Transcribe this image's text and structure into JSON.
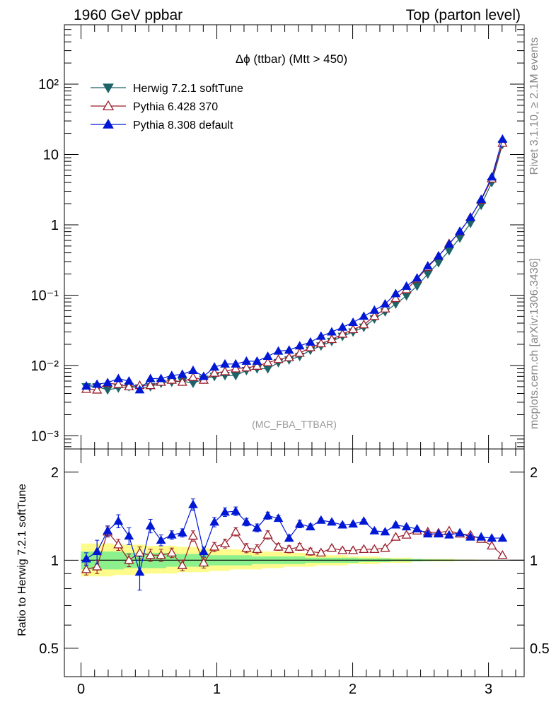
{
  "header": {
    "left": "1960 GeV ppbar",
    "right": "Top (parton level)"
  },
  "side_labels": {
    "rivet": "Rivet 3.1.10, ≥ 2.1M events",
    "mcplots": "mcplots.cern.ch [arXiv:1306.3436]"
  },
  "watermark": "(MC_FBA_TTBAR)",
  "colors": {
    "herwig": "#1d6468",
    "pythia6": "#9b1c2a",
    "pythia8": "#0018d6",
    "band_inner": "#8cf08c",
    "band_outer": "#fdfb8c"
  },
  "chart_data": [
    {
      "type": "line",
      "title": "Δϕ (ttbar) (Mtt > 450)",
      "xlabel": "",
      "ylabel": "",
      "yscale": "log",
      "ylim": [
        0.00065,
        700
      ],
      "xlim": [
        -0.06,
        3.2
      ],
      "yticks": [
        {
          "value": 0.001,
          "label": "10⁻³"
        },
        {
          "value": 0.01,
          "label": "10⁻²"
        },
        {
          "value": 0.1,
          "label": "10⁻¹"
        },
        {
          "value": 1,
          "label": "1"
        },
        {
          "value": 10,
          "label": "10"
        },
        {
          "value": 100,
          "label": "10²"
        }
      ],
      "legend": "top-left",
      "x": [
        0.039,
        0.118,
        0.196,
        0.275,
        0.353,
        0.432,
        0.511,
        0.589,
        0.668,
        0.746,
        0.825,
        0.903,
        0.982,
        1.06,
        1.139,
        1.218,
        1.296,
        1.375,
        1.453,
        1.532,
        1.61,
        1.689,
        1.767,
        1.846,
        1.925,
        2.003,
        2.082,
        2.16,
        2.239,
        2.317,
        2.396,
        2.474,
        2.553,
        2.632,
        2.71,
        2.789,
        2.867,
        2.946,
        3.024,
        3.103
      ],
      "series": [
        {
          "name": "Herwig 7.2.1 softTune",
          "color": "#1d6468",
          "marker": "triangle-down-filled",
          "values": [
            0.005,
            0.005,
            0.0045,
            0.0048,
            0.005,
            0.0048,
            0.005,
            0.0056,
            0.0058,
            0.006,
            0.0056,
            0.0064,
            0.007,
            0.0072,
            0.0072,
            0.0085,
            0.009,
            0.009,
            0.011,
            0.012,
            0.0135,
            0.0165,
            0.019,
            0.022,
            0.026,
            0.03,
            0.035,
            0.046,
            0.058,
            0.075,
            0.098,
            0.135,
            0.2,
            0.29,
            0.43,
            0.65,
            1.05,
            1.9,
            4.0,
            14.0
          ]
        },
        {
          "name": "Pythia 6.428 370",
          "color": "#9b1c2a",
          "marker": "triangle-up-open",
          "values": [
            0.0046,
            0.0045,
            0.0056,
            0.0054,
            0.005,
            0.0052,
            0.0052,
            0.0058,
            0.0062,
            0.0058,
            0.0068,
            0.0062,
            0.0078,
            0.0082,
            0.009,
            0.0093,
            0.0098,
            0.011,
            0.0122,
            0.013,
            0.015,
            0.018,
            0.0205,
            0.0235,
            0.028,
            0.0325,
            0.038,
            0.05,
            0.064,
            0.09,
            0.12,
            0.17,
            0.25,
            0.36,
            0.54,
            0.8,
            1.28,
            2.25,
            4.5,
            14.5
          ]
        },
        {
          "name": "Pythia 8.308 default",
          "color": "#0018d6",
          "marker": "triangle-up-filled",
          "values": [
            0.0051,
            0.0054,
            0.0057,
            0.0065,
            0.006,
            0.0045,
            0.0065,
            0.0065,
            0.0072,
            0.0075,
            0.0085,
            0.007,
            0.0095,
            0.0105,
            0.0105,
            0.0115,
            0.0115,
            0.0135,
            0.016,
            0.0165,
            0.019,
            0.0215,
            0.026,
            0.03,
            0.035,
            0.041,
            0.05,
            0.061,
            0.075,
            0.105,
            0.134,
            0.175,
            0.26,
            0.36,
            0.53,
            0.81,
            1.27,
            2.3,
            4.8,
            16.5
          ]
        }
      ]
    },
    {
      "type": "line",
      "title": "",
      "xlabel": "",
      "ylabel": "Ratio to Herwig 7.2.1 softTune",
      "yscale": "log",
      "ylim": [
        0.4,
        2.4
      ],
      "xlim": [
        -0.06,
        3.2
      ],
      "yticks": [
        {
          "value": 0.5,
          "label": "0.5"
        },
        {
          "value": 1,
          "label": "1"
        },
        {
          "value": 2,
          "label": "2"
        }
      ],
      "xticks": [
        {
          "value": 0,
          "label": "0"
        },
        {
          "value": 1,
          "label": "1"
        },
        {
          "value": 2,
          "label": "2"
        },
        {
          "value": 3,
          "label": "3"
        }
      ],
      "x": [
        0.039,
        0.118,
        0.196,
        0.275,
        0.353,
        0.432,
        0.511,
        0.589,
        0.668,
        0.746,
        0.825,
        0.903,
        0.982,
        1.06,
        1.139,
        1.218,
        1.296,
        1.375,
        1.453,
        1.532,
        1.61,
        1.689,
        1.767,
        1.846,
        1.925,
        2.003,
        2.082,
        2.16,
        2.239,
        2.317,
        2.396,
        2.474,
        2.553,
        2.632,
        2.71,
        2.789,
        2.867,
        2.946,
        3.024,
        3.103
      ],
      "band_outer": {
        "lo": [
          0.88,
          0.88,
          0.88,
          0.89,
          0.89,
          0.89,
          0.9,
          0.9,
          0.9,
          0.91,
          0.91,
          0.91,
          0.92,
          0.92,
          0.93,
          0.93,
          0.93,
          0.94,
          0.94,
          0.95,
          0.95,
          0.95,
          0.96,
          0.96,
          0.96,
          0.97,
          0.97,
          0.97,
          0.98,
          0.98,
          0.98,
          0.99,
          0.99,
          0.99,
          0.99,
          0.995,
          0.995,
          0.997,
          0.998,
          0.999
        ],
        "hi": [
          1.14,
          1.14,
          1.14,
          1.13,
          1.13,
          1.13,
          1.12,
          1.12,
          1.12,
          1.11,
          1.11,
          1.1,
          1.1,
          1.09,
          1.09,
          1.08,
          1.08,
          1.07,
          1.07,
          1.06,
          1.06,
          1.05,
          1.05,
          1.04,
          1.04,
          1.03,
          1.03,
          1.03,
          1.02,
          1.02,
          1.02,
          1.01,
          1.01,
          1.01,
          1.01,
          1.005,
          1.005,
          1.003,
          1.002,
          1.001
        ]
      },
      "band_inner": {
        "lo": [
          0.93,
          0.93,
          0.93,
          0.93,
          0.94,
          0.94,
          0.94,
          0.94,
          0.95,
          0.95,
          0.95,
          0.95,
          0.96,
          0.96,
          0.96,
          0.96,
          0.97,
          0.97,
          0.97,
          0.97,
          0.97,
          0.98,
          0.98,
          0.98,
          0.98,
          0.98,
          0.985,
          0.985,
          0.985,
          0.99,
          0.99,
          0.99,
          0.993,
          0.994,
          0.995,
          0.996,
          0.997,
          0.998,
          0.999,
          0.999
        ],
        "hi": [
          1.07,
          1.07,
          1.07,
          1.07,
          1.06,
          1.06,
          1.06,
          1.06,
          1.05,
          1.05,
          1.05,
          1.05,
          1.04,
          1.04,
          1.04,
          1.04,
          1.03,
          1.03,
          1.03,
          1.03,
          1.03,
          1.02,
          1.02,
          1.02,
          1.02,
          1.02,
          1.015,
          1.015,
          1.015,
          1.01,
          1.01,
          1.01,
          1.007,
          1.006,
          1.005,
          1.004,
          1.003,
          1.002,
          1.001,
          1.001
        ]
      },
      "series": [
        {
          "name": "Pythia 6.428 370",
          "color": "#9b1c2a",
          "marker": "triangle-up-open",
          "values": [
            0.93,
            0.95,
            1.25,
            1.13,
            1.0,
            1.06,
            1.04,
            1.04,
            1.06,
            0.96,
            1.21,
            0.98,
            1.11,
            1.14,
            1.25,
            1.1,
            1.09,
            1.22,
            1.11,
            1.09,
            1.11,
            1.07,
            1.06,
            1.1,
            1.08,
            1.08,
            1.09,
            1.09,
            1.1,
            1.2,
            1.22,
            1.26,
            1.25,
            1.24,
            1.26,
            1.23,
            1.22,
            1.18,
            1.12,
            1.04
          ],
          "err": [
            0.04,
            0.05,
            0.05,
            0.05,
            0.05,
            0.05,
            0.05,
            0.05,
            0.04,
            0.04,
            0.05,
            0.04,
            0.04,
            0.04,
            0.04,
            0.04,
            0.04,
            0.04,
            0.03,
            0.03,
            0.03,
            0.03,
            0.02,
            0.02,
            0.02,
            0.02,
            0.02,
            0.02,
            0.02,
            0.02,
            0.02,
            0.01,
            0.01,
            0.01,
            0.01,
            0.01,
            0.01,
            0.01,
            0.01,
            0.01
          ]
        },
        {
          "name": "Pythia 8.308 default",
          "color": "#0018d6",
          "marker": "triangle-up-filled",
          "values": [
            1.01,
            1.07,
            1.26,
            1.36,
            1.21,
            0.91,
            1.31,
            1.17,
            1.22,
            1.24,
            1.55,
            1.07,
            1.35,
            1.46,
            1.47,
            1.35,
            1.29,
            1.42,
            1.39,
            1.19,
            1.33,
            1.3,
            1.37,
            1.35,
            1.32,
            1.33,
            1.36,
            1.26,
            1.25,
            1.32,
            1.3,
            1.28,
            1.23,
            1.23,
            1.22,
            1.24,
            1.2,
            1.2,
            1.19,
            1.19
          ],
          "err": [
            0.05,
            0.1,
            0.05,
            0.07,
            0.08,
            0.12,
            0.07,
            0.05,
            0.04,
            0.04,
            0.07,
            0.04,
            0.05,
            0.05,
            0.05,
            0.04,
            0.04,
            0.04,
            0.03,
            0.03,
            0.04,
            0.03,
            0.02,
            0.02,
            0.02,
            0.02,
            0.02,
            0.02,
            0.02,
            0.02,
            0.02,
            0.01,
            0.01,
            0.01,
            0.01,
            0.01,
            0.01,
            0.01,
            0.01,
            0.01
          ]
        }
      ]
    }
  ]
}
